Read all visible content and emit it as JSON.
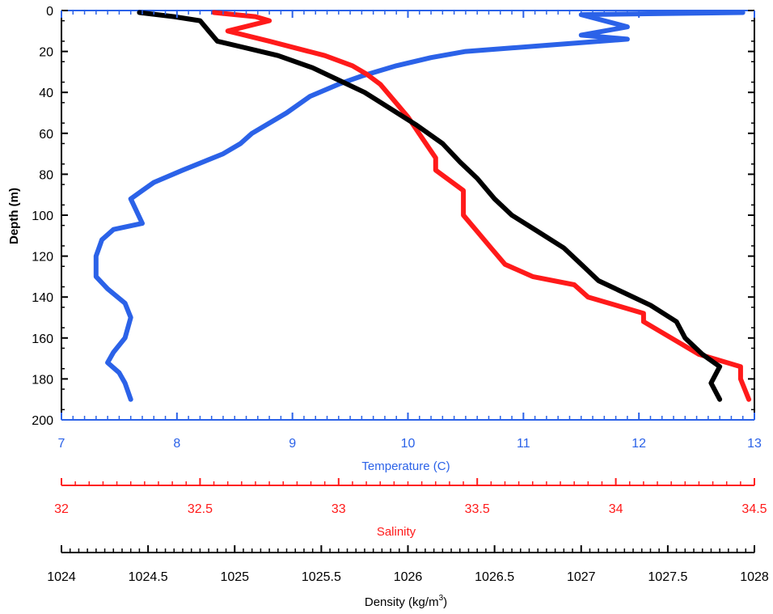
{
  "chart_data": {
    "type": "line",
    "ylabel": "Depth (m)",
    "ylim": [
      0,
      200
    ],
    "y_inverted": true,
    "y_ticks": [
      0,
      20,
      40,
      60,
      80,
      100,
      120,
      140,
      160,
      180,
      200
    ],
    "grid": false,
    "legend": "none",
    "x_axes": [
      {
        "key": "temperature",
        "label": "Temperature (C)",
        "range": [
          7,
          13
        ],
        "ticks": [
          7,
          8,
          9,
          10,
          11,
          12,
          13
        ],
        "color": "#2b62e8"
      },
      {
        "key": "salinity",
        "label": "Salinity",
        "range": [
          32,
          34.5
        ],
        "ticks": [
          32,
          32.5,
          33,
          33.5,
          34,
          34.5
        ],
        "color": "#ff1a1a"
      },
      {
        "key": "density",
        "label": "Density (kg/m³)",
        "label_text": "Density (kg/m",
        "label_sup": "3",
        "label_close": ")",
        "range": [
          1024,
          1028
        ],
        "ticks": [
          1024,
          1024.5,
          1025,
          1025.5,
          1026,
          1026.5,
          1027,
          1027.5,
          1028
        ],
        "color": "#000000"
      }
    ],
    "series": [
      {
        "axis": "temperature",
        "color": "#2b62e8",
        "points": [
          [
            12.9,
            1
          ],
          [
            11.5,
            2
          ],
          [
            11.9,
            8
          ],
          [
            11.5,
            12
          ],
          [
            11.9,
            14
          ],
          [
            11.2,
            17
          ],
          [
            10.5,
            20
          ],
          [
            10.2,
            23
          ],
          [
            9.9,
            27
          ],
          [
            9.6,
            32
          ],
          [
            9.4,
            36
          ],
          [
            9.15,
            42
          ],
          [
            8.95,
            50
          ],
          [
            8.65,
            60
          ],
          [
            8.55,
            65
          ],
          [
            8.4,
            70
          ],
          [
            8.05,
            78
          ],
          [
            7.8,
            84
          ],
          [
            7.7,
            88
          ],
          [
            7.6,
            92
          ],
          [
            7.7,
            104
          ],
          [
            7.45,
            107
          ],
          [
            7.35,
            112
          ],
          [
            7.3,
            120
          ],
          [
            7.3,
            130
          ],
          [
            7.4,
            136
          ],
          [
            7.55,
            143
          ],
          [
            7.6,
            150
          ],
          [
            7.55,
            160
          ],
          [
            7.45,
            167
          ],
          [
            7.4,
            172
          ],
          [
            7.5,
            177
          ],
          [
            7.55,
            182
          ],
          [
            7.6,
            190
          ]
        ]
      },
      {
        "axis": "salinity",
        "color": "#ff1a1a",
        "points": [
          [
            32.55,
            1
          ],
          [
            32.7,
            3
          ],
          [
            32.75,
            5
          ],
          [
            32.6,
            10
          ],
          [
            32.75,
            15
          ],
          [
            32.95,
            22
          ],
          [
            33.05,
            27
          ],
          [
            33.1,
            31
          ],
          [
            33.15,
            36
          ],
          [
            33.2,
            44
          ],
          [
            33.25,
            52
          ],
          [
            33.3,
            62
          ],
          [
            33.35,
            72
          ],
          [
            33.35,
            78
          ],
          [
            33.45,
            88
          ],
          [
            33.45,
            92
          ],
          [
            33.45,
            100
          ],
          [
            33.5,
            108
          ],
          [
            33.55,
            116
          ],
          [
            33.6,
            124
          ],
          [
            33.7,
            130
          ],
          [
            33.85,
            134
          ],
          [
            33.9,
            140
          ],
          [
            34.0,
            144
          ],
          [
            34.1,
            148
          ],
          [
            34.1,
            152
          ],
          [
            34.2,
            160
          ],
          [
            34.3,
            168
          ],
          [
            34.45,
            174
          ],
          [
            34.45,
            180
          ],
          [
            34.48,
            190
          ]
        ]
      },
      {
        "axis": "density",
        "color": "#000000",
        "points": [
          [
            1024.45,
            1
          ],
          [
            1024.65,
            3
          ],
          [
            1024.8,
            5
          ],
          [
            1024.85,
            10
          ],
          [
            1024.9,
            15
          ],
          [
            1025.05,
            18
          ],
          [
            1025.25,
            22
          ],
          [
            1025.45,
            28
          ],
          [
            1025.6,
            34
          ],
          [
            1025.75,
            40
          ],
          [
            1025.9,
            48
          ],
          [
            1026.05,
            56
          ],
          [
            1026.2,
            65
          ],
          [
            1026.3,
            74
          ],
          [
            1026.4,
            82
          ],
          [
            1026.5,
            92
          ],
          [
            1026.6,
            100
          ],
          [
            1026.75,
            108
          ],
          [
            1026.9,
            116
          ],
          [
            1027.0,
            124
          ],
          [
            1027.1,
            132
          ],
          [
            1027.25,
            138
          ],
          [
            1027.4,
            144
          ],
          [
            1027.55,
            152
          ],
          [
            1027.6,
            160
          ],
          [
            1027.7,
            168
          ],
          [
            1027.8,
            174
          ],
          [
            1027.75,
            182
          ],
          [
            1027.8,
            190
          ]
        ]
      }
    ]
  }
}
